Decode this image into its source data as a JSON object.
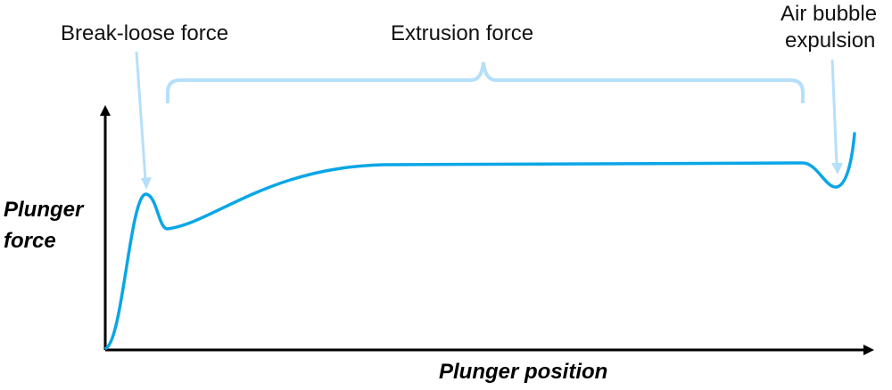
{
  "annotations": {
    "break_loose": "Break-loose force",
    "extrusion": "Extrusion force",
    "air_bubble_line1": "Air bubble",
    "air_bubble_line2": "expulsion"
  },
  "axes": {
    "y_label_line1": "Plunger",
    "y_label_line2": "force",
    "x_label": "Plunger position"
  },
  "colors": {
    "curve": "#0aa6e6",
    "annotation": "#b6dffa",
    "axis": "#000000"
  }
}
